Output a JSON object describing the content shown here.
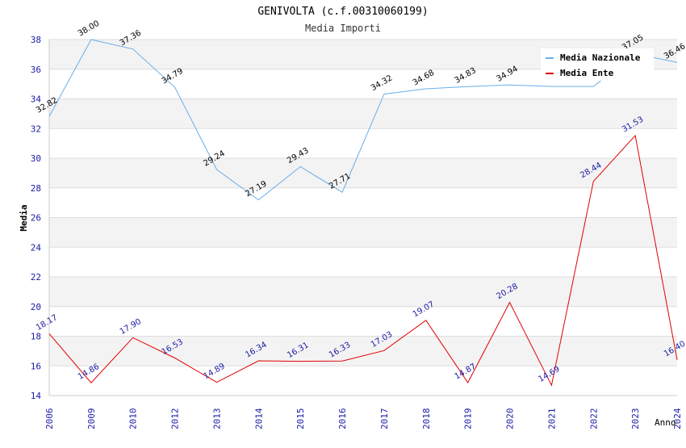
{
  "chart_data": {
    "type": "line",
    "title": "GENIVOLTA (c.f.00310060199)",
    "subtitle": "Media Importi",
    "xlabel": "Anno",
    "ylabel": "Media",
    "ylim": [
      14,
      38
    ],
    "yticks": [
      14,
      16,
      18,
      20,
      22,
      24,
      26,
      28,
      30,
      32,
      34,
      36,
      38
    ],
    "categories": [
      "2006",
      "2009",
      "2010",
      "2012",
      "2013",
      "2014",
      "2015",
      "2016",
      "2017",
      "2018",
      "2019",
      "2020",
      "2021",
      "2022",
      "2023",
      "2024"
    ],
    "legend_position": "top-right",
    "series": [
      {
        "name": "Media Nazionale",
        "color": "#6aaee8",
        "label_color": "#000000",
        "values": [
          32.82,
          38.0,
          37.36,
          34.79,
          29.24,
          27.19,
          29.43,
          27.71,
          34.32,
          34.68,
          34.83,
          34.94,
          34.84,
          34.84,
          37.05,
          36.46
        ],
        "labels": [
          "32.82",
          "38.00",
          "37.36",
          "34.79",
          "29.24",
          "27.19",
          "29.43",
          "27.71",
          "34.32",
          "34.68",
          "34.83",
          "34.94",
          "",
          "",
          "37.05",
          "36.46"
        ]
      },
      {
        "name": "Media Ente",
        "color": "#e00000",
        "label_color": "#1a1aa6",
        "values": [
          18.17,
          14.86,
          17.9,
          16.53,
          14.89,
          16.34,
          16.31,
          16.33,
          17.03,
          19.07,
          14.87,
          20.28,
          14.69,
          28.44,
          31.53,
          16.4
        ],
        "labels": [
          "18.17",
          "14.86",
          "17.90",
          "16.53",
          "14.89",
          "16.34",
          "16.31",
          "16.33",
          "17.03",
          "19.07",
          "14.87",
          "20.28",
          "14.69",
          "28.44",
          "31.53",
          "16.40"
        ]
      }
    ]
  }
}
